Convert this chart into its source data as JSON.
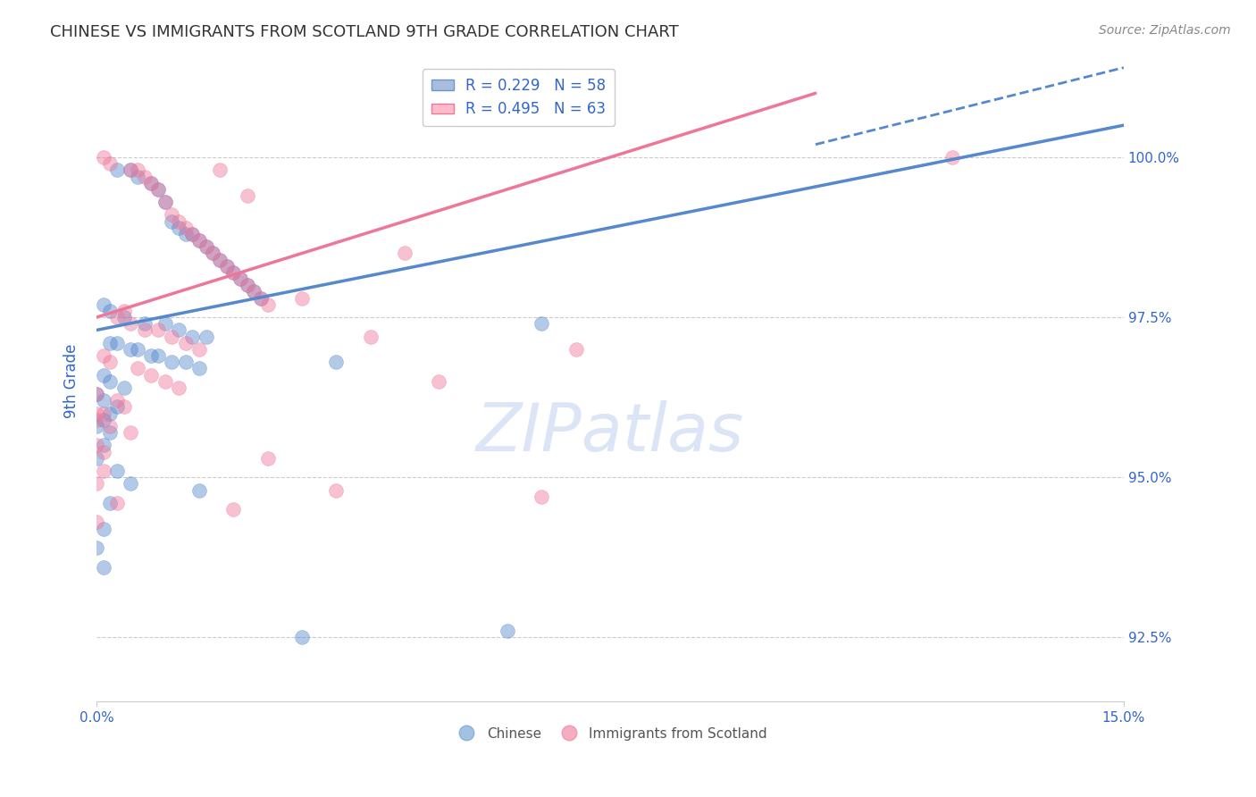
{
  "title": "CHINESE VS IMMIGRANTS FROM SCOTLAND 9TH GRADE CORRELATION CHART",
  "source": "Source: ZipAtlas.com",
  "ylabel": "9th Grade",
  "xlim": [
    0.0,
    15.0
  ],
  "ylim": [
    91.5,
    101.5
  ],
  "ytick_values": [
    92.5,
    95.0,
    97.5,
    100.0
  ],
  "blue_color": "#5588cc",
  "pink_color": "#ee7799",
  "blue_scatter": [
    [
      0.3,
      99.8
    ],
    [
      0.5,
      99.8
    ],
    [
      0.6,
      99.7
    ],
    [
      0.8,
      99.6
    ],
    [
      0.9,
      99.5
    ],
    [
      1.0,
      99.3
    ],
    [
      1.1,
      99.0
    ],
    [
      1.2,
      98.9
    ],
    [
      1.3,
      98.8
    ],
    [
      1.4,
      98.8
    ],
    [
      1.5,
      98.7
    ],
    [
      1.6,
      98.6
    ],
    [
      1.7,
      98.5
    ],
    [
      1.8,
      98.4
    ],
    [
      1.9,
      98.3
    ],
    [
      2.0,
      98.2
    ],
    [
      2.1,
      98.1
    ],
    [
      2.2,
      98.0
    ],
    [
      2.3,
      97.9
    ],
    [
      2.4,
      97.8
    ],
    [
      0.1,
      97.7
    ],
    [
      0.2,
      97.6
    ],
    [
      0.4,
      97.5
    ],
    [
      0.7,
      97.4
    ],
    [
      1.0,
      97.4
    ],
    [
      1.2,
      97.3
    ],
    [
      1.4,
      97.2
    ],
    [
      1.6,
      97.2
    ],
    [
      0.2,
      97.1
    ],
    [
      0.3,
      97.1
    ],
    [
      0.5,
      97.0
    ],
    [
      0.6,
      97.0
    ],
    [
      0.8,
      96.9
    ],
    [
      0.9,
      96.9
    ],
    [
      1.1,
      96.8
    ],
    [
      1.3,
      96.8
    ],
    [
      1.5,
      96.7
    ],
    [
      0.1,
      96.6
    ],
    [
      0.2,
      96.5
    ],
    [
      0.4,
      96.4
    ],
    [
      0.0,
      96.3
    ],
    [
      0.1,
      96.2
    ],
    [
      0.3,
      96.1
    ],
    [
      0.2,
      96.0
    ],
    [
      0.1,
      95.9
    ],
    [
      0.0,
      95.8
    ],
    [
      0.2,
      95.7
    ],
    [
      0.1,
      95.5
    ],
    [
      0.0,
      95.3
    ],
    [
      0.3,
      95.1
    ],
    [
      0.5,
      94.9
    ],
    [
      1.5,
      94.8
    ],
    [
      0.2,
      94.6
    ],
    [
      0.1,
      94.2
    ],
    [
      6.5,
      97.4
    ],
    [
      3.5,
      96.8
    ],
    [
      0.0,
      93.9
    ],
    [
      0.1,
      93.6
    ],
    [
      6.0,
      92.6
    ],
    [
      3.0,
      92.5
    ]
  ],
  "pink_scatter": [
    [
      0.1,
      100.0
    ],
    [
      0.2,
      99.9
    ],
    [
      0.5,
      99.8
    ],
    [
      0.6,
      99.8
    ],
    [
      0.7,
      99.7
    ],
    [
      0.8,
      99.6
    ],
    [
      0.9,
      99.5
    ],
    [
      1.0,
      99.3
    ],
    [
      1.1,
      99.1
    ],
    [
      1.2,
      99.0
    ],
    [
      1.3,
      98.9
    ],
    [
      1.4,
      98.8
    ],
    [
      1.5,
      98.7
    ],
    [
      1.6,
      98.6
    ],
    [
      1.7,
      98.5
    ],
    [
      1.8,
      98.4
    ],
    [
      1.9,
      98.3
    ],
    [
      2.0,
      98.2
    ],
    [
      2.1,
      98.1
    ],
    [
      2.2,
      98.0
    ],
    [
      2.3,
      97.9
    ],
    [
      2.4,
      97.8
    ],
    [
      2.5,
      97.7
    ],
    [
      0.4,
      97.6
    ],
    [
      0.3,
      97.5
    ],
    [
      0.5,
      97.4
    ],
    [
      0.7,
      97.3
    ],
    [
      0.9,
      97.3
    ],
    [
      1.1,
      97.2
    ],
    [
      1.3,
      97.1
    ],
    [
      1.5,
      97.0
    ],
    [
      0.1,
      96.9
    ],
    [
      0.2,
      96.8
    ],
    [
      0.6,
      96.7
    ],
    [
      0.8,
      96.6
    ],
    [
      1.0,
      96.5
    ],
    [
      1.2,
      96.4
    ],
    [
      0.0,
      96.3
    ],
    [
      0.3,
      96.2
    ],
    [
      0.4,
      96.1
    ],
    [
      0.1,
      96.0
    ],
    [
      0.0,
      95.9
    ],
    [
      0.2,
      95.8
    ],
    [
      0.5,
      95.7
    ],
    [
      0.0,
      95.5
    ],
    [
      2.5,
      95.3
    ],
    [
      0.1,
      95.1
    ],
    [
      3.5,
      94.8
    ],
    [
      0.3,
      94.6
    ],
    [
      2.0,
      94.5
    ],
    [
      6.5,
      94.7
    ],
    [
      0.0,
      94.3
    ],
    [
      12.5,
      100.0
    ],
    [
      1.8,
      99.8
    ],
    [
      2.2,
      99.4
    ],
    [
      4.5,
      98.5
    ],
    [
      3.0,
      97.8
    ],
    [
      0.0,
      96.0
    ],
    [
      0.1,
      95.4
    ],
    [
      4.0,
      97.2
    ],
    [
      5.0,
      96.5
    ],
    [
      0.0,
      94.9
    ],
    [
      7.0,
      97.0
    ]
  ],
  "blue_line": {
    "x0": 0.0,
    "x1": 15.0,
    "y0": 97.3,
    "y1": 100.5
  },
  "pink_line": {
    "x0": 0.0,
    "x1": 10.5,
    "y0": 97.5,
    "y1": 101.0
  },
  "blue_ext_line": {
    "x0": 10.5,
    "x1": 15.0,
    "y0": 100.2,
    "y1": 101.4
  },
  "background_color": "#ffffff",
  "grid_color": "#cccccc",
  "title_color": "#333333",
  "axis_label_color": "#3366cc",
  "tick_color": "#3366cc"
}
